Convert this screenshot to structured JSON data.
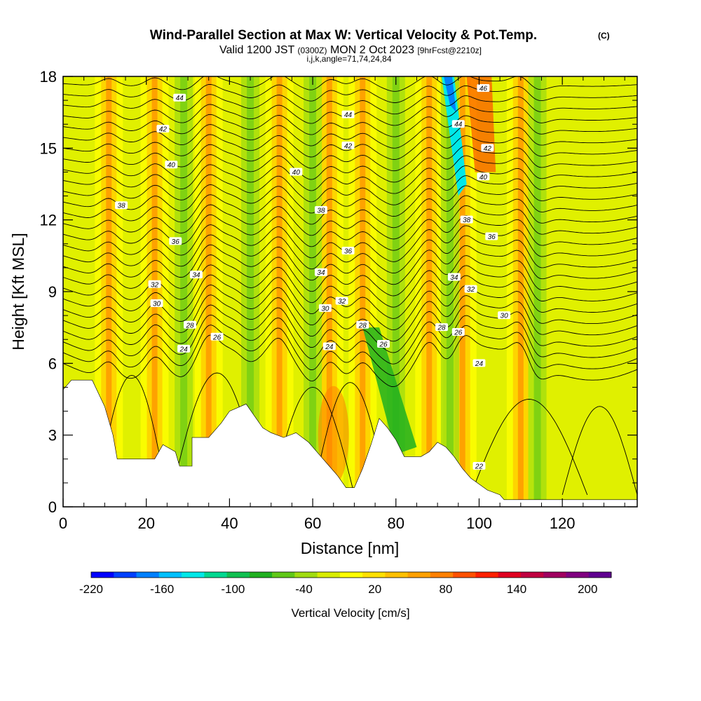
{
  "header": {
    "title": "Wind-Parallel Section at Max W: Vertical Velocity & Pot.Temp.",
    "copyright": "(C)",
    "subtitle_main_a": "Valid 1200 JST",
    "subtitle_z": "(0300Z)",
    "subtitle_main_b": "MON 2 Oct 2023",
    "subtitle_fcst": "[9hrFcst@2210z]",
    "indices": "i,j,k,angle=71,74,24,84"
  },
  "colorbar": {
    "label": "Vertical Velocity [cm/s]",
    "tick_labels": [
      "-220",
      "-160",
      "-100",
      "-40",
      "20",
      "80",
      "140",
      "200"
    ],
    "colors": [
      "#0000ff",
      "#0040ff",
      "#0080ff",
      "#00c0ff",
      "#00e8e8",
      "#00d890",
      "#10c050",
      "#20b020",
      "#60c818",
      "#a0dc10",
      "#d8ec00",
      "#ffff00",
      "#ffe000",
      "#ffc000",
      "#ffa000",
      "#ff8000",
      "#ff5000",
      "#ff2000",
      "#e00020",
      "#c00040",
      "#a00060",
      "#800080",
      "#600090"
    ]
  },
  "chart_data": {
    "type": "heatmap",
    "title": "Wind-Parallel Section at Max W: Vertical Velocity & Pot.Temp.",
    "xlabel": "Distance [nm]",
    "ylabel": "Height [Kft MSL]",
    "xlim": [
      0,
      138
    ],
    "ylim": [
      0,
      18
    ],
    "x_ticks": [
      0,
      20,
      40,
      60,
      80,
      100,
      120
    ],
    "y_ticks": [
      0,
      3,
      6,
      9,
      12,
      15,
      18
    ],
    "x_tick_labels": [
      "0",
      "20",
      "40",
      "60",
      "80",
      "100",
      "120"
    ],
    "y_tick_labels": [
      "0",
      "3",
      "6",
      "9",
      "12",
      "15",
      "18"
    ],
    "colorbar_range": [
      -220,
      220
    ],
    "terrain_kft": [
      [
        0,
        4.9
      ],
      [
        2,
        5.3
      ],
      [
        7,
        5.3
      ],
      [
        10,
        4.2
      ],
      [
        12,
        3.0
      ],
      [
        13,
        2.0
      ],
      [
        22,
        2.0
      ],
      [
        24,
        2.6
      ],
      [
        27,
        2.3
      ],
      [
        28,
        1.7
      ],
      [
        31,
        1.7
      ],
      [
        31,
        2.9
      ],
      [
        35,
        2.9
      ],
      [
        38,
        3.5
      ],
      [
        40,
        4.0
      ],
      [
        44,
        4.3
      ],
      [
        46,
        3.8
      ],
      [
        48,
        3.3
      ],
      [
        50,
        3.1
      ],
      [
        53,
        2.9
      ],
      [
        56,
        3.1
      ],
      [
        59,
        2.7
      ],
      [
        62,
        2.1
      ],
      [
        64,
        1.7
      ],
      [
        66,
        1.3
      ],
      [
        68,
        0.8
      ],
      [
        70,
        0.8
      ],
      [
        72,
        1.6
      ],
      [
        74,
        2.6
      ],
      [
        76,
        3.7
      ],
      [
        78,
        3.3
      ],
      [
        80,
        2.8
      ],
      [
        82,
        2.1
      ],
      [
        84,
        2.1
      ],
      [
        86,
        2.1
      ],
      [
        88,
        2.3
      ],
      [
        90,
        2.7
      ],
      [
        92,
        2.5
      ],
      [
        94,
        2.1
      ],
      [
        96,
        1.6
      ],
      [
        98,
        1.2
      ],
      [
        102,
        0.7
      ],
      [
        105,
        0.5
      ],
      [
        106,
        0.3
      ],
      [
        138,
        0.3
      ]
    ],
    "updraft_bands_x_nm": [
      11,
      22,
      35,
      52,
      64,
      72,
      88,
      96,
      110
    ],
    "downdraft_bands_x_nm": [
      29,
      45,
      60,
      80,
      93,
      114
    ],
    "max_updraft_cm_s": 180,
    "max_downdraft_cm_s": -220,
    "isentropes_pot_temp_label_list": [
      "22",
      "24",
      "26",
      "28",
      "30",
      "32",
      "34",
      "36",
      "38",
      "40",
      "42",
      "44",
      "46"
    ],
    "contour_labels": [
      {
        "v": "44",
        "x": 28,
        "y": 17.1
      },
      {
        "v": "44",
        "x": 68.5,
        "y": 16.4
      },
      {
        "v": "46",
        "x": 101,
        "y": 17.5
      },
      {
        "v": "42",
        "x": 24,
        "y": 15.8
      },
      {
        "v": "44",
        "x": 95,
        "y": 16
      },
      {
        "v": "42",
        "x": 68.5,
        "y": 15.1
      },
      {
        "v": "42",
        "x": 102,
        "y": 15.0
      },
      {
        "v": "40",
        "x": 26,
        "y": 14.3
      },
      {
        "v": "40",
        "x": 56,
        "y": 14.0
      },
      {
        "v": "40",
        "x": 101,
        "y": 13.8
      },
      {
        "v": "38",
        "x": 14,
        "y": 12.6
      },
      {
        "v": "38",
        "x": 62,
        "y": 12.4
      },
      {
        "v": "38",
        "x": 97,
        "y": 12.0
      },
      {
        "v": "36",
        "x": 27,
        "y": 11.1
      },
      {
        "v": "36",
        "x": 103,
        "y": 11.3
      },
      {
        "v": "36",
        "x": 68.5,
        "y": 10.7
      },
      {
        "v": "34",
        "x": 32,
        "y": 9.7
      },
      {
        "v": "34",
        "x": 62,
        "y": 9.8
      },
      {
        "v": "34",
        "x": 94,
        "y": 9.6
      },
      {
        "v": "32",
        "x": 22,
        "y": 9.3
      },
      {
        "v": "32",
        "x": 98,
        "y": 9.1
      },
      {
        "v": "30",
        "x": 22.5,
        "y": 8.5
      },
      {
        "v": "32",
        "x": 67,
        "y": 8.6
      },
      {
        "v": "30",
        "x": 63,
        "y": 8.3
      },
      {
        "v": "30",
        "x": 106,
        "y": 8.0
      },
      {
        "v": "28",
        "x": 30.5,
        "y": 7.6
      },
      {
        "v": "28",
        "x": 72,
        "y": 7.6
      },
      {
        "v": "28",
        "x": 91,
        "y": 7.5
      },
      {
        "v": "26",
        "x": 37,
        "y": 7.1
      },
      {
        "v": "26",
        "x": 95,
        "y": 7.3
      },
      {
        "v": "26",
        "x": 77,
        "y": 6.8
      },
      {
        "v": "24",
        "x": 29,
        "y": 6.6
      },
      {
        "v": "24",
        "x": 64,
        "y": 6.7
      },
      {
        "v": "24",
        "x": 100,
        "y": 6.0
      },
      {
        "v": "22",
        "x": 100,
        "y": 1.7
      }
    ]
  }
}
